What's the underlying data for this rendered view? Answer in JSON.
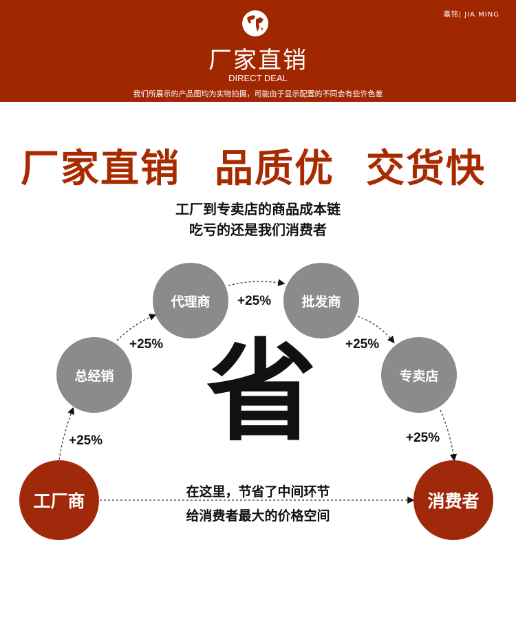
{
  "header": {
    "brand": "嘉铭| JIA MING",
    "icon": "globe-icon",
    "title": "厂家直销",
    "subtitle": "DIRECT DEAL",
    "note": "我们所展示的产品图均为实物拍摄，可能由于显示配置的不同会有些许色差",
    "bg": "#a12700"
  },
  "slogans": [
    "厂家直销",
    "品质优",
    "交货快"
  ],
  "intro": [
    "工厂到专卖店的商品成本链",
    "吃亏的还是我们消费者"
  ],
  "chain": {
    "factory": "工厂商",
    "distributor": "总经销",
    "agent": "代理商",
    "wholesaler": "批发商",
    "store": "专卖店",
    "consumer": "消费者",
    "markup": "+25%"
  },
  "center": {
    "big": "省",
    "lines": [
      "在这里，节省了中间环节",
      "给消费者最大的价格空间"
    ]
  },
  "colors": {
    "red": "#a0290c",
    "gray": "#8b8b8b"
  }
}
